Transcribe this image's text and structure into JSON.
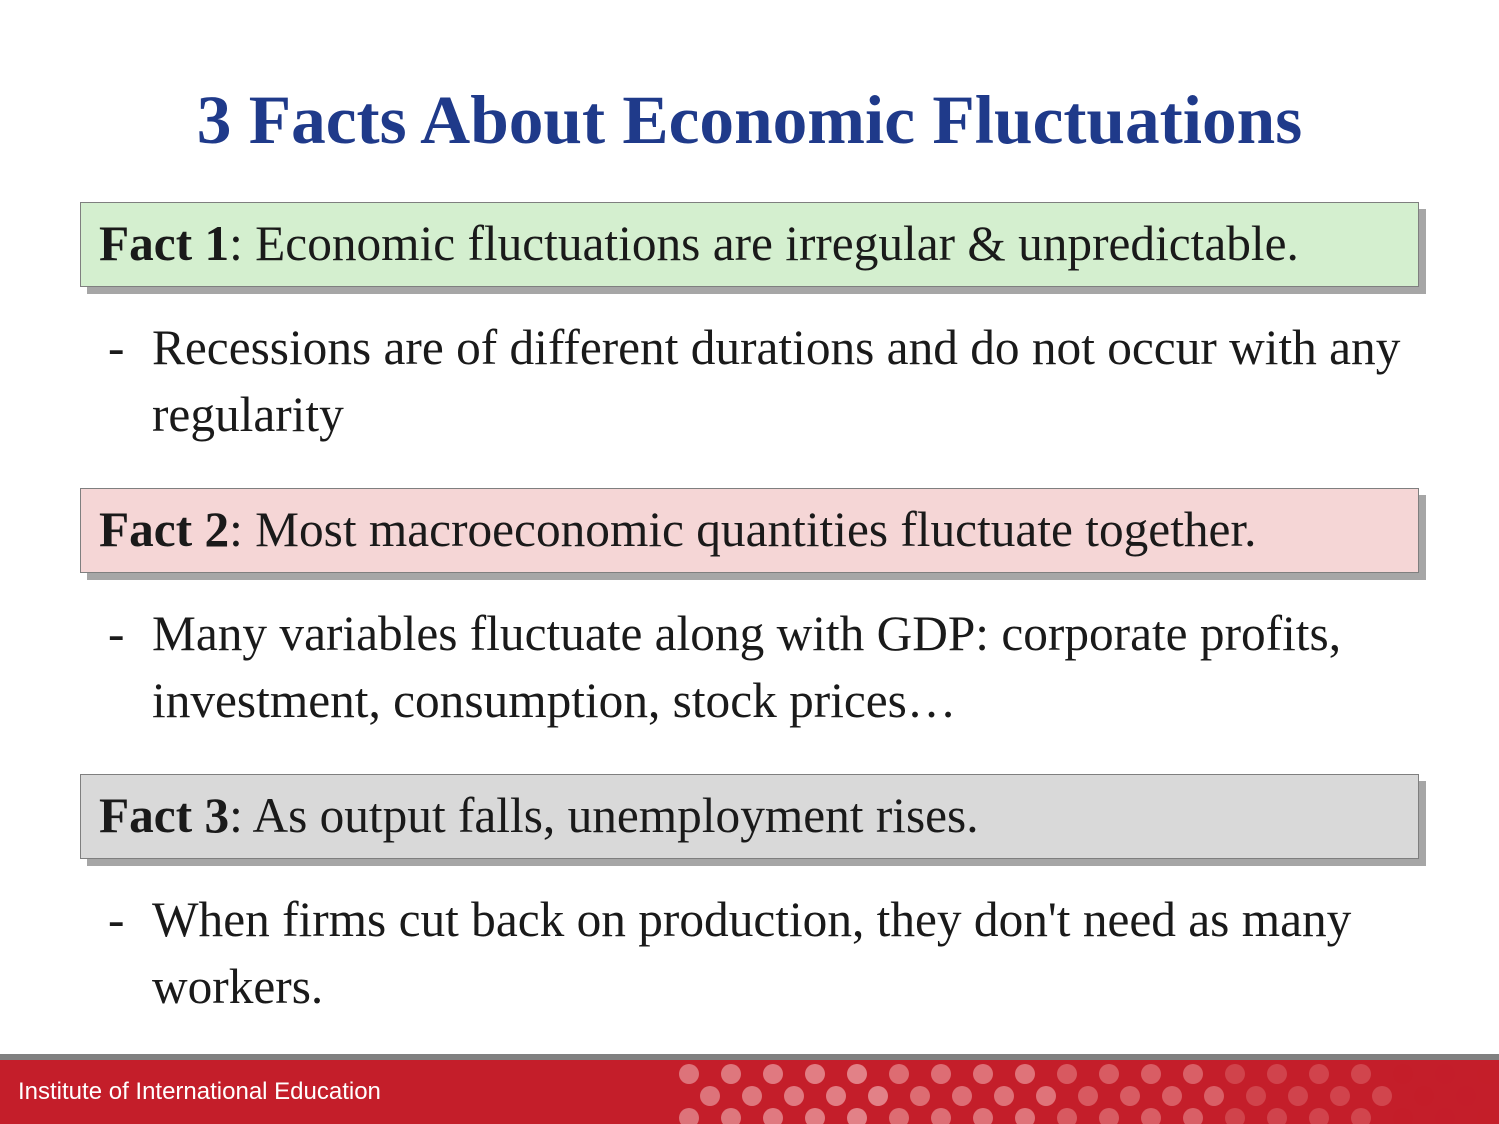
{
  "title": {
    "text": "3 Facts About Economic Fluctuations",
    "color": "#1f3a8a",
    "fontsize_pt": 52
  },
  "body_color": "#1a1a1a",
  "body_fontsize_pt": 37,
  "facts": [
    {
      "label": "Fact 1",
      "text": ":  Economic fluctuations are irregular & unpredictable.",
      "bg": "#d4efcf",
      "bullet": "Recessions are of different durations and do not occur with any regularity"
    },
    {
      "label": "Fact 2",
      "text": ": Most macroeconomic quantities fluctuate together.",
      "bg": "#f5d6d6",
      "bullet": "Many variables fluctuate along with GDP: corporate profits, investment, consumption, stock prices…"
    },
    {
      "label": "Fact 3",
      "text": ": As output falls, unemployment rises.",
      "bg": "#d9d9d9",
      "bullet": "When firms cut back on production, they don't need as many workers."
    }
  ],
  "footer": {
    "stripe_top_color": "#808080",
    "bg_color": "#c41e2a",
    "text": "Institute of International Education",
    "text_color": "#ffffff",
    "text_fontsize_pt": 18,
    "dot_colors_gradient": [
      "#c41e2a",
      "#d24a52",
      "#de6f74",
      "#e99498",
      "#f3babc"
    ]
  }
}
